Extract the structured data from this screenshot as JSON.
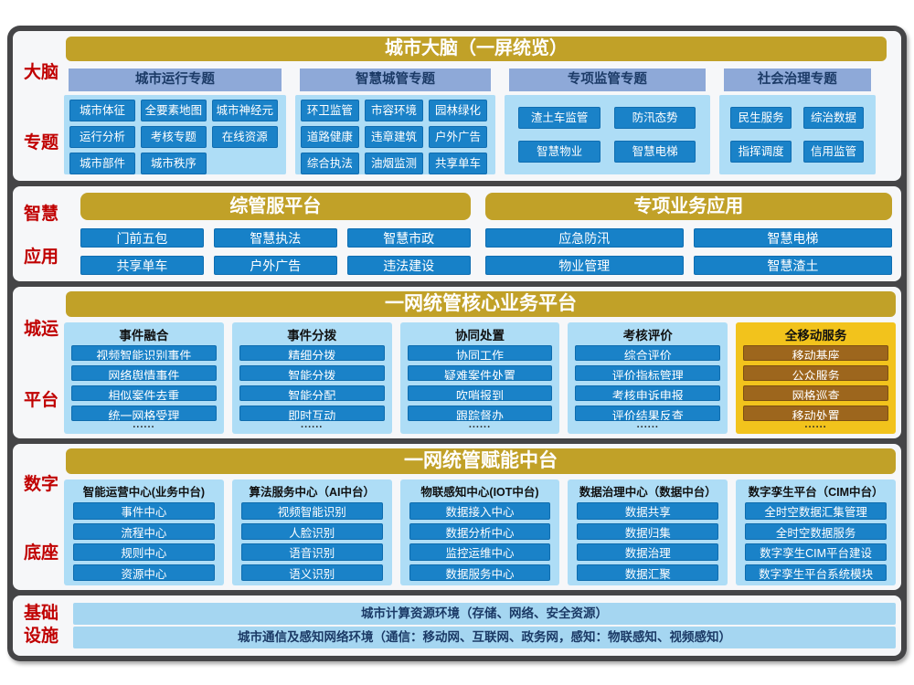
{
  "colors": {
    "gold_header": "#c1a128",
    "blue_module": "#1781c8",
    "light_blue_panel": "#aeddf6",
    "grayblue_subheader": "#8ea9d8",
    "yellow_column": "#f2c31c",
    "brown_module": "#9d661d",
    "red_side_label": "#c00000",
    "frame_dark": "#454547"
  },
  "brain": {
    "side_label_1": "大脑",
    "side_label_2": "专题",
    "header": "城市大脑（一屏统览）",
    "groups": [
      {
        "title": "城市运行专题",
        "items": [
          "城市体征",
          "全要素地图",
          "城市神经元",
          "运行分析",
          "考核专题",
          "在线资源",
          "城市部件",
          "城市秩序"
        ]
      },
      {
        "title": "智慧城管专题",
        "items": [
          "环卫监管",
          "市容环境",
          "园林绿化",
          "道路健康",
          "违章建筑",
          "户外广告",
          "综合执法",
          "油烟监测",
          "共享单车"
        ]
      },
      {
        "title": "专项监管专题",
        "items": [
          "渣土车监管",
          "防汛态势",
          "智慧物业",
          "智慧电梯"
        ]
      },
      {
        "title": "社会治理专题",
        "items": [
          "民生服务",
          "综治数据",
          "指挥调度",
          "信用监管"
        ]
      }
    ]
  },
  "apps": {
    "side_label_1": "智慧",
    "side_label_2": "应用",
    "groups": [
      {
        "header": "综管服平台",
        "items": [
          "门前五包",
          "智慧执法",
          "智慧市政",
          "共享单车",
          "户外广告",
          "违法建设"
        ]
      },
      {
        "header": "专项业务应用",
        "items": [
          "应急防汛",
          "智慧电梯",
          "物业管理",
          "智慧渣土"
        ]
      }
    ]
  },
  "core": {
    "side_label_1": "城运",
    "side_label_2": "平台",
    "header": "一网统管核心业务平台",
    "more": "......",
    "columns": [
      {
        "title": "事件融合",
        "items": [
          "视频智能识别事件",
          "网络舆情事件",
          "相似案件去重",
          "统一网格受理"
        ]
      },
      {
        "title": "事件分拨",
        "items": [
          "精细分拨",
          "智能分拨",
          "智能分配",
          "即时互动"
        ]
      },
      {
        "title": "协同处置",
        "items": [
          "协同工作",
          "疑难案件处置",
          "吹哨报到",
          "跟踪督办"
        ]
      },
      {
        "title": "考核评价",
        "items": [
          "综合评价",
          "评价指标管理",
          "考核申诉申报",
          "评价结果反查"
        ]
      },
      {
        "title": "全移动服务",
        "items": [
          "移动基座",
          "公众服务",
          "网格巡查",
          "移动处置"
        ]
      }
    ]
  },
  "enable": {
    "side_label_1": "数字",
    "side_label_2": "底座",
    "header": "一网统管赋能中台",
    "columns": [
      {
        "title": "智能运营中心(业务中台)",
        "items": [
          "事件中心",
          "流程中心",
          "规则中心",
          "资源中心"
        ]
      },
      {
        "title": "算法服务中心（AI中台）",
        "items": [
          "视频智能识别",
          "人脸识别",
          "语音识别",
          "语义识别"
        ]
      },
      {
        "title": "物联感知中心(IOT中台)",
        "items": [
          "数据接入中心",
          "数据分析中心",
          "监控运维中心",
          "数据服务中心"
        ]
      },
      {
        "title": "数据治理中心（数据中台）",
        "items": [
          "数据共享",
          "数据归集",
          "数据治理",
          "数据汇聚"
        ]
      },
      {
        "title": "数字孪生平台（CIM中台）",
        "items": [
          "全时空数据汇集管理",
          "全时空数据服务",
          "数字孪生CIM平台建设",
          "数字孪生平台系统模块"
        ]
      }
    ]
  },
  "infra": {
    "side_label_1": "基础",
    "side_label_2": "设施",
    "bars": [
      "城市计算资源环境（存储、网络、安全资源）",
      "城市通信及感知网络环境（通信：移动网、互联网、政务网，感知：物联感知、视频感知）"
    ]
  }
}
